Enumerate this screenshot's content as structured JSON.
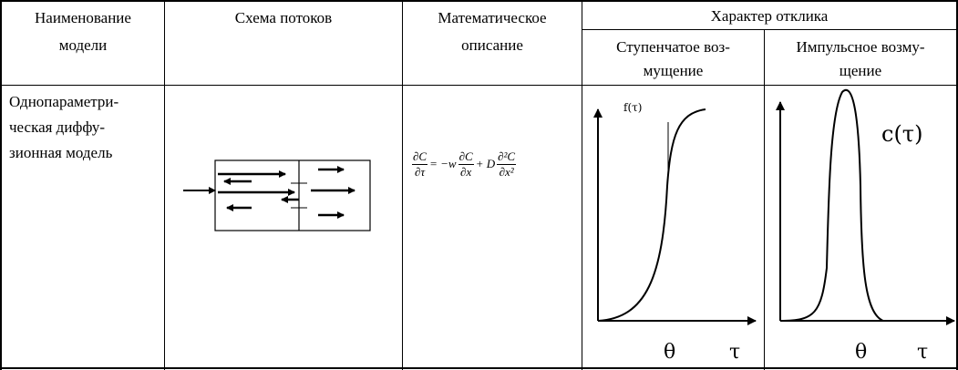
{
  "table": {
    "headers": {
      "model_name": [
        "Наименование",
        "модели"
      ],
      "flow_scheme": "Схема потоков",
      "math_description": [
        "Математическое",
        "описание"
      ],
      "response_character": "Характер отклика",
      "step_disturbance": [
        "Ступенчатое воз-",
        "мущение"
      ],
      "impulse_disturbance": [
        "Импульсное возму-",
        "щение"
      ]
    },
    "row": {
      "model_name": [
        "Однопараметри-",
        "ческая диффу-",
        "зионная модель"
      ],
      "equation": {
        "lhs_num": "∂C",
        "lhs_den": "∂τ",
        "equals_minus_w": "= −w",
        "term1_num": "∂C",
        "term1_den": "∂x",
        "plus_d": "+ D",
        "term2_num": "∂²C",
        "term2_den": "∂x²"
      },
      "step_graph": {
        "y_label": "f(τ)",
        "theta_label": "θ",
        "tau_label": "τ"
      },
      "impulse_graph": {
        "y_label": "c(τ)",
        "theta_label": "θ",
        "tau_label": "τ"
      }
    }
  }
}
